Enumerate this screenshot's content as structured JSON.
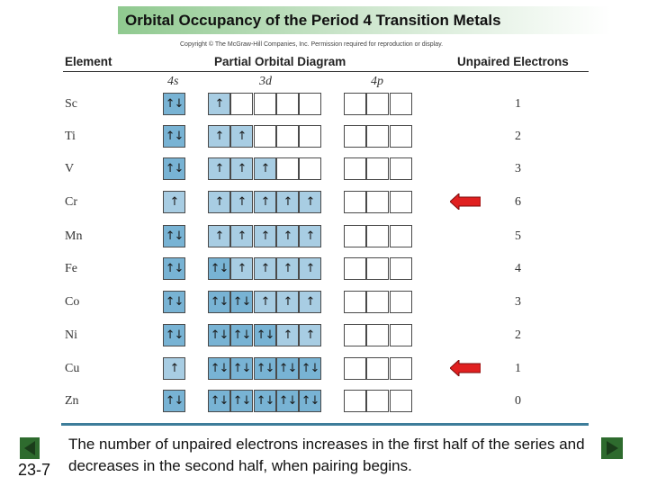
{
  "title": "Orbital Occupancy of the Period 4 Transition Metals",
  "copyright": "Copyright © The McGraw-Hill Companies, Inc. Permission required for reproduction or display.",
  "headers": {
    "element": "Element",
    "diagram": "Partial Orbital Diagram",
    "unpaired": "Unpaired Electrons"
  },
  "orbitals": {
    "s": "4s",
    "d": "3d",
    "p": "4p"
  },
  "rows": [
    {
      "element": "Sc",
      "s": "↑↓",
      "d": [
        "↑",
        "",
        "",
        "",
        ""
      ],
      "unpaired": "1"
    },
    {
      "element": "Ti",
      "s": "↑↓",
      "d": [
        "↑",
        "↑",
        "",
        "",
        ""
      ],
      "unpaired": "2"
    },
    {
      "element": "V",
      "s": "↑↓",
      "d": [
        "↑",
        "↑",
        "↑",
        "",
        ""
      ],
      "unpaired": "3"
    },
    {
      "element": "Cr",
      "s": "↑",
      "d": [
        "↑",
        "↑",
        "↑",
        "↑",
        "↑"
      ],
      "unpaired": "6"
    },
    {
      "element": "Mn",
      "s": "↑↓",
      "d": [
        "↑",
        "↑",
        "↑",
        "↑",
        "↑"
      ],
      "unpaired": "5"
    },
    {
      "element": "Fe",
      "s": "↑↓",
      "d": [
        "↑↓",
        "↑",
        "↑",
        "↑",
        "↑"
      ],
      "unpaired": "4"
    },
    {
      "element": "Co",
      "s": "↑↓",
      "d": [
        "↑↓",
        "↑↓",
        "↑",
        "↑",
        "↑"
      ],
      "unpaired": "3"
    },
    {
      "element": "Ni",
      "s": "↑↓",
      "d": [
        "↑↓",
        "↑↓",
        "↑↓",
        "↑",
        "↑"
      ],
      "unpaired": "2"
    },
    {
      "element": "Cu",
      "s": "↑",
      "d": [
        "↑↓",
        "↑↓",
        "↑↓",
        "↑↓",
        "↑↓"
      ],
      "unpaired": "1"
    },
    {
      "element": "Zn",
      "s": "↑↓",
      "d": [
        "↑↓",
        "↑↓",
        "↑↓",
        "↑↓",
        "↑↓"
      ],
      "unpaired": "0"
    }
  ],
  "highlighted_elements": [
    "Cr",
    "Cu"
  ],
  "footer": "The number of unpaired electrons increases in the first half of the series and decreases in the second half, when pairing begins.",
  "slide_number": "23-7",
  "colors": {
    "filled_box": "#78b3d4",
    "half_filled_box": "#a8cde3",
    "arrow": "#e02020",
    "title_bar": "#8fc98f",
    "nav_button": "#2e6b2e"
  },
  "nav_icons": [
    "previous-slide-icon",
    "next-slide-icon"
  ]
}
